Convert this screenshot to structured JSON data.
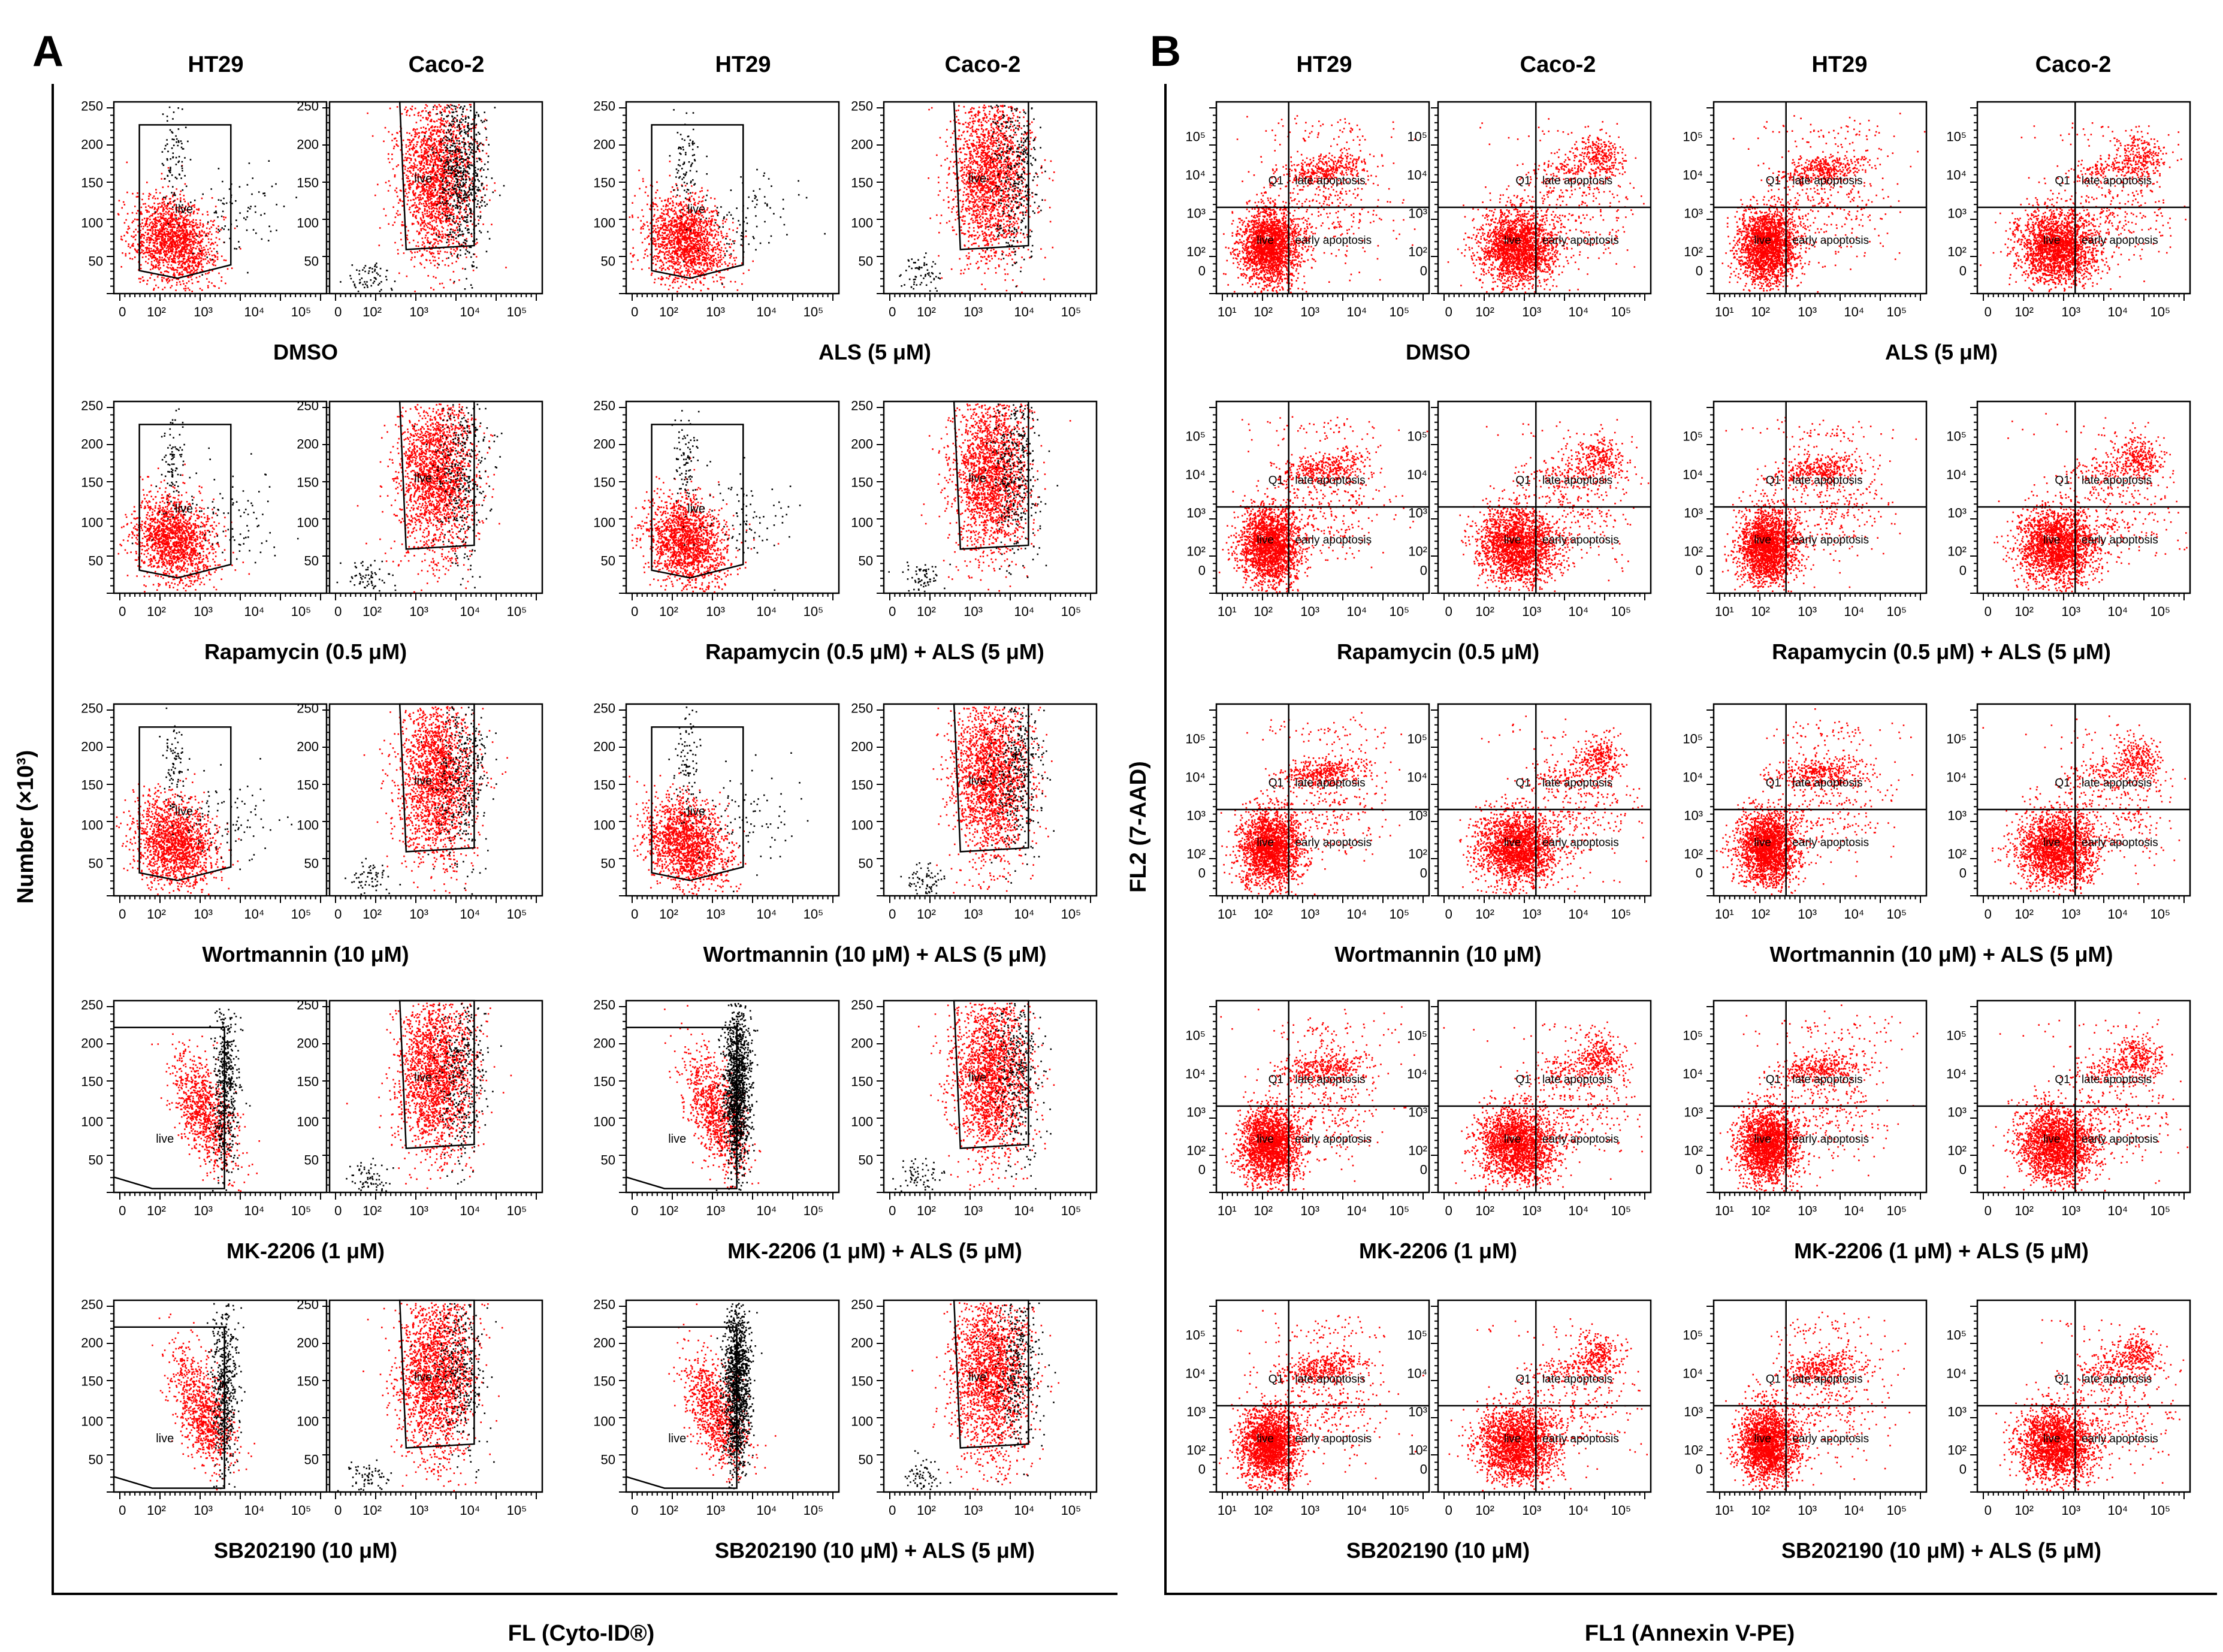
{
  "figure": {
    "panels": [
      {
        "id": "A",
        "letter": "A",
        "column_headers": [
          "HT29",
          "Caco-2",
          "HT29",
          "Caco-2"
        ],
        "y_axis_label": "Number (×10³)",
        "x_axis_label": "FL (Cyto-ID®)",
        "y_tick_labels": [
          "50",
          "100",
          "150",
          "200",
          "250"
        ],
        "x_tick_labels": [
          "0",
          "10²",
          "10³",
          "10⁴",
          "10⁵"
        ],
        "gate_label": "live",
        "row_conditions": [
          [
            "DMSO",
            "ALS (5 μM)"
          ],
          [
            "Rapamycin (0.5 μM)",
            "Rapamycin (0.5 μM) + ALS (5 μM)"
          ],
          [
            "Wortmannin (10 μM)",
            "Wortmannin (10 μM) + ALS (5 μM)"
          ],
          [
            "MK-2206 (1 μM)",
            "MK-2206 (1 μM) + ALS (5 μM)"
          ],
          [
            "SB202190 (10 μM)",
            "SB202190 (10 μM) + ALS (5 μM)"
          ]
        ]
      },
      {
        "id": "B",
        "letter": "B",
        "column_headers": [
          "HT29",
          "Caco-2",
          "HT29",
          "Caco-2"
        ],
        "y_axis_label": "FL2 (7-AAD)",
        "x_axis_label": "FL1 (Annexin V-PE)",
        "y_tick_labels": [
          "0",
          "10²",
          "10³",
          "10⁴",
          "10⁵"
        ],
        "x_tick_labels": [
          "10¹",
          "10²",
          "10³",
          "10⁴",
          "10⁵"
        ],
        "x_tick_labels_alt": [
          "0",
          "10²",
          "10³",
          "10⁴",
          "10⁵"
        ],
        "quadrant_labels": [
          "Q1",
          "late apoptosis",
          "live",
          "early apoptosis"
        ],
        "row_conditions": [
          [
            "DMSO",
            "ALS (5 μM)"
          ],
          [
            "Rapamycin (0.5 μM)",
            "Rapamycin (0.5 μM) + ALS (5 μM)"
          ],
          [
            "Wortmannin (10 μM)",
            "Wortmannin (10 μM) + ALS (5 μM)"
          ],
          [
            "MK-2206 (1 μM)",
            "MK-2206 (1 μM) + ALS (5 μM)"
          ],
          [
            "SB202190 (10 μM)",
            "SB202190 (10 μM) + ALS (5 μM)"
          ]
        ]
      }
    ]
  },
  "colors": {
    "gated_dots": "#ff0000",
    "ungated_dots": "#000000",
    "frame": "#000000"
  }
}
